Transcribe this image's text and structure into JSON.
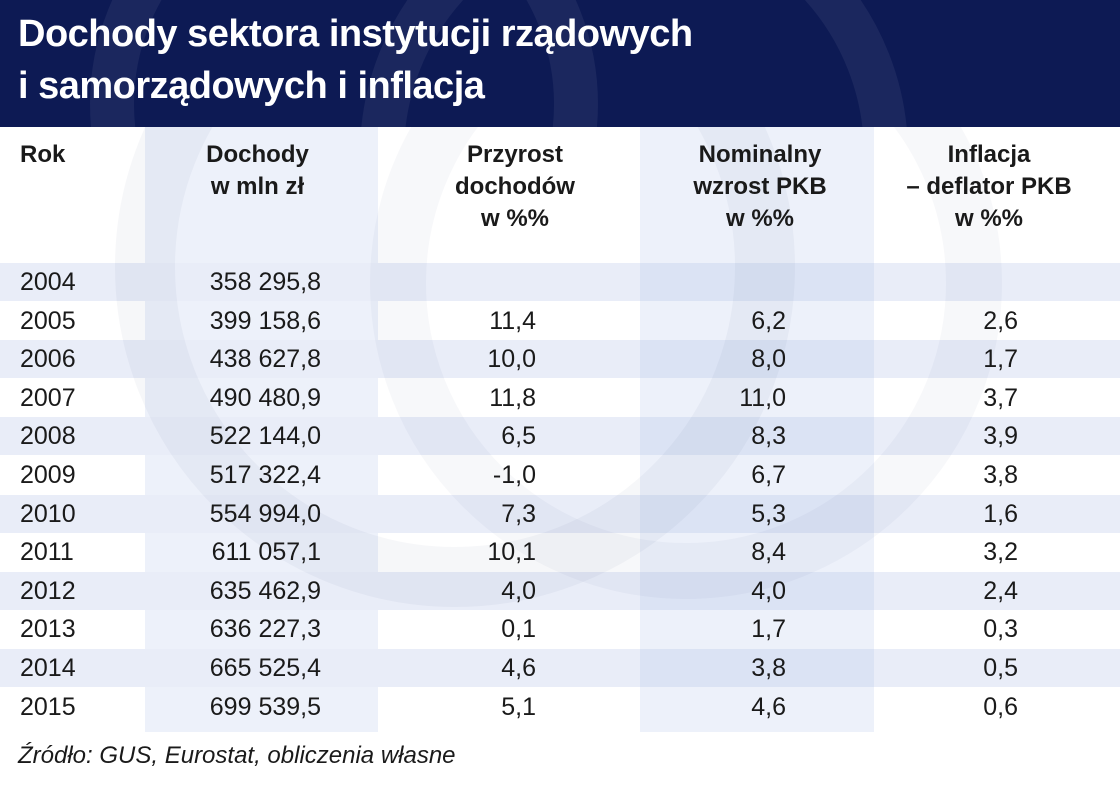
{
  "title": {
    "line1": "Dochody sektora instytucji rządowych",
    "line2": "i samorządowych i inflacja"
  },
  "colors": {
    "header_bg": "#0d1a54",
    "band_light": "#e9edf8",
    "band_col": "#dbe3f4",
    "col_shade": "#edf1fa"
  },
  "chart_data": {
    "type": "table",
    "title": "Dochody sektora instytucji rządowych i samorządowych i inflacja",
    "columns": [
      [
        "Rok"
      ],
      [
        "Dochody",
        "w mln zł"
      ],
      [
        "Przyrost",
        "dochodów",
        "w %%"
      ],
      [
        "Nominalny",
        "wzrost PKB",
        "w %%"
      ],
      [
        "Inflacja",
        "– deflator PKB",
        "w %%"
      ]
    ],
    "rows": [
      [
        "2004",
        "358 295,8",
        "",
        "",
        ""
      ],
      [
        "2005",
        "399 158,6",
        "11,4",
        "6,2",
        "2,6"
      ],
      [
        "2006",
        "438 627,8",
        "10,0",
        "8,0",
        "1,7"
      ],
      [
        "2007",
        "490 480,9",
        "11,8",
        "11,0",
        "3,7"
      ],
      [
        "2008",
        "522 144,0",
        "6,5",
        "8,3",
        "3,9"
      ],
      [
        "2009",
        "517 322,4",
        "-1,0",
        "6,7",
        "3,8"
      ],
      [
        "2010",
        "554 994,0",
        "7,3",
        "5,3",
        "1,6"
      ],
      [
        "2011",
        "611 057,1",
        "10,1",
        "8,4",
        "3,2"
      ],
      [
        "2012",
        "635 462,9",
        "4,0",
        "4,0",
        "2,4"
      ],
      [
        "2013",
        "636 227,3",
        "0,1",
        "1,7",
        "0,3"
      ],
      [
        "2014",
        "665 525,4",
        "4,6",
        "3,8",
        "0,5"
      ],
      [
        "2015",
        "699 539,5",
        "5,1",
        "4,6",
        "0,6"
      ]
    ]
  },
  "source": "Źródło: GUS, Eurostat, obliczenia własne"
}
